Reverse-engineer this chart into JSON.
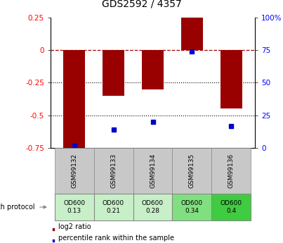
{
  "title": "GDS2592 / 4357",
  "samples": [
    "GSM99132",
    "GSM99133",
    "GSM99134",
    "GSM99135",
    "GSM99136"
  ],
  "log2_ratio": [
    -0.75,
    -0.35,
    -0.3,
    0.25,
    -0.45
  ],
  "percentile_rank": [
    1.5,
    14.0,
    20.0,
    74.0,
    17.0
  ],
  "bar_color": "#990000",
  "dot_color": "#0000cc",
  "left_ylim": [
    -0.75,
    0.25
  ],
  "right_ylim": [
    0,
    100
  ],
  "left_yticks": [
    -0.75,
    -0.5,
    -0.25,
    0.0,
    0.25
  ],
  "left_yticklabels": [
    "-0.75",
    "-0.5",
    "-0.25",
    "0",
    "0.25"
  ],
  "right_yticks": [
    0,
    25,
    50,
    75,
    100
  ],
  "right_yticklabels": [
    "0",
    "25",
    "50",
    "75",
    "100%"
  ],
  "hlines_dotted": [
    -0.25,
    -0.5
  ],
  "growth_protocol_label": "growth protocol",
  "od600_values": [
    "OD600\n0.13",
    "OD600\n0.21",
    "OD600\n0.28",
    "OD600\n0.34",
    "OD600\n0.4"
  ],
  "od600_colors": [
    "#c8f0c8",
    "#c8f0c8",
    "#c8f0c8",
    "#80e080",
    "#40cc40"
  ],
  "sample_bg_color": "#c8c8c8",
  "legend_log2": "log2 ratio",
  "legend_pct": "percentile rank within the sample",
  "bar_width": 0.55
}
